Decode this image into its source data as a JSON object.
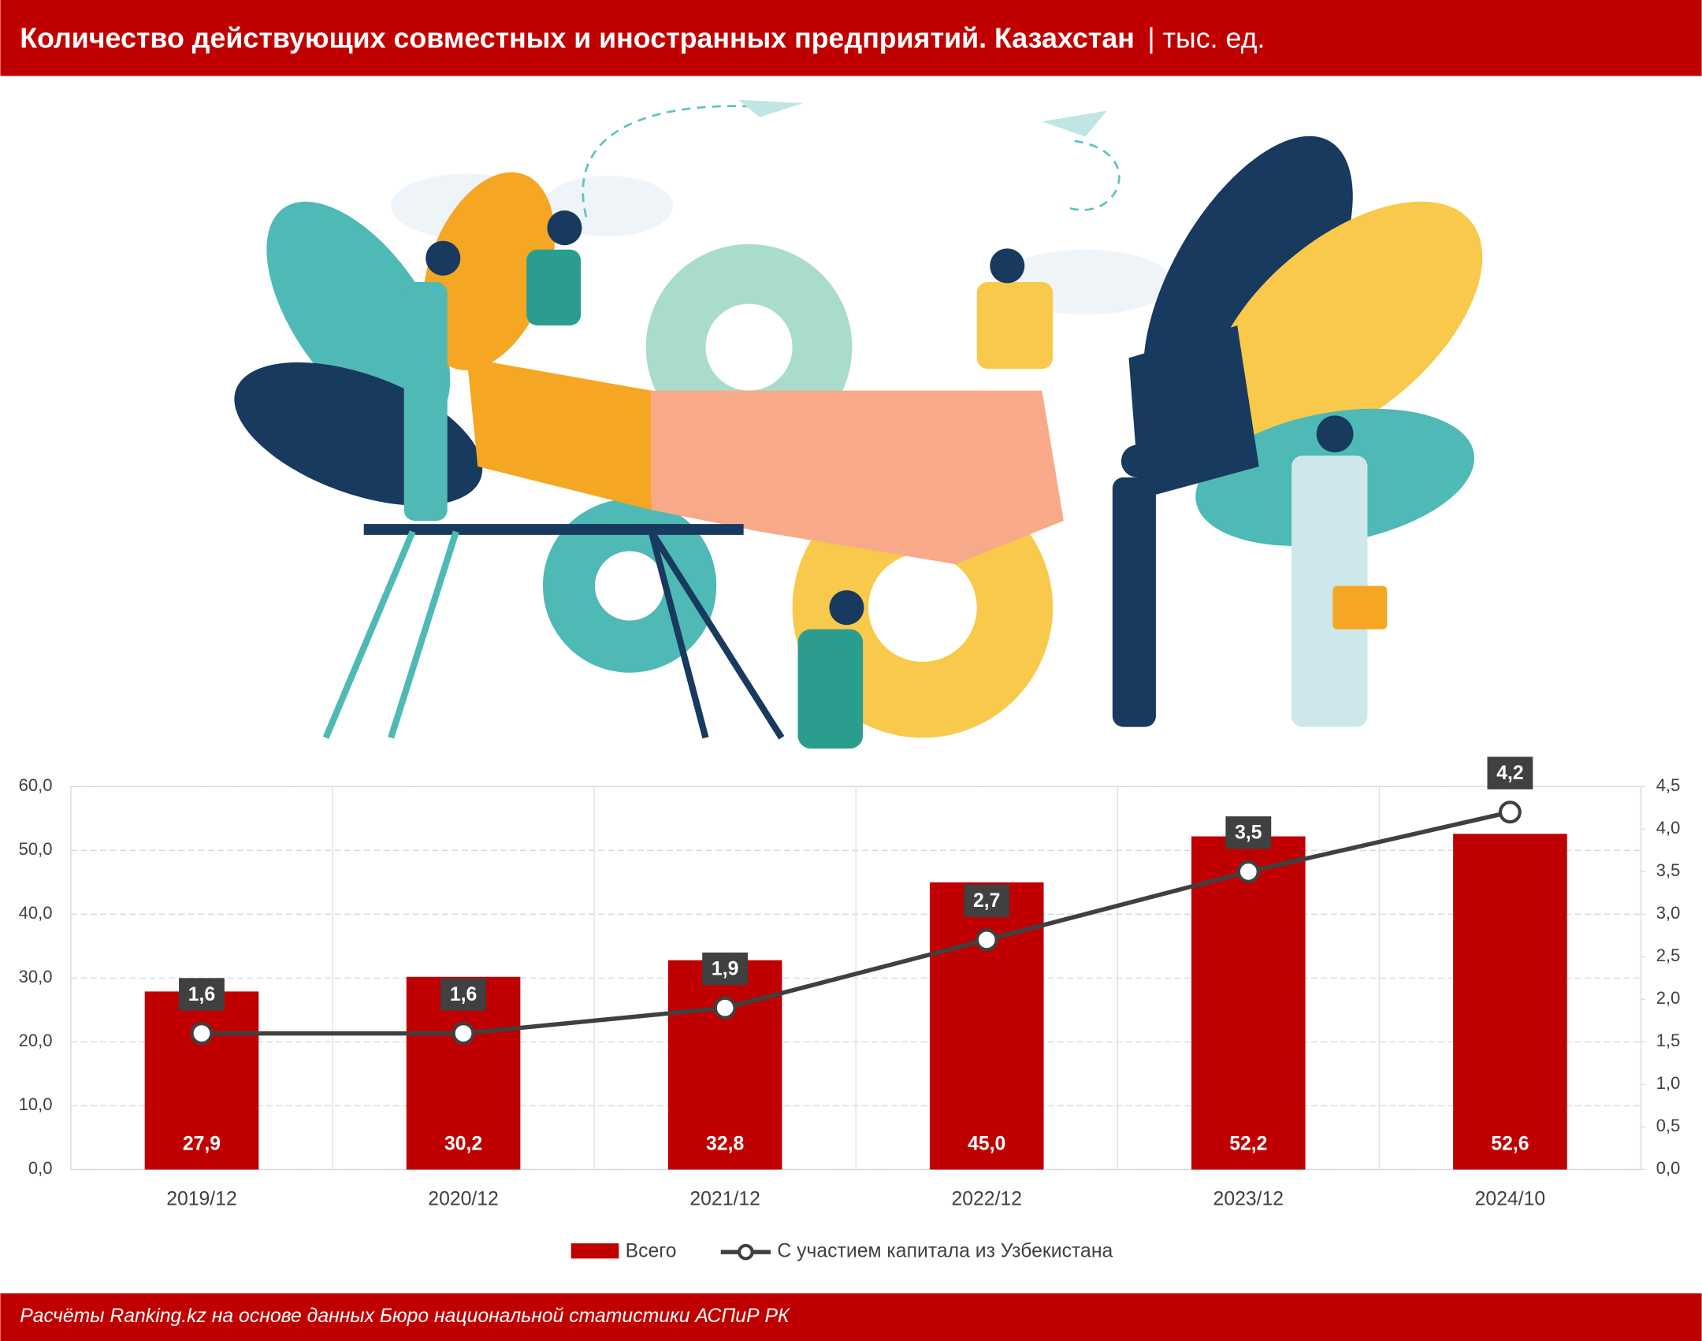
{
  "chart_data": {
    "type": "bar",
    "title": "Количество действующих совместных и иностранных предприятий. Казахстан",
    "subtitle": "| тыс. ед.",
    "source": "Расчёты Ranking.kz на основе данных Бюро национальной статистики АСПиР РК",
    "categories": [
      "2019/12",
      "2020/12",
      "2021/12",
      "2022/12",
      "2023/12",
      "2024/10"
    ],
    "series": [
      {
        "name": "Всего",
        "type": "bar",
        "color": "#c00000",
        "values": [
          27.9,
          30.2,
          32.8,
          45.0,
          52.2,
          52.6
        ],
        "value_labels": [
          "27,9",
          "30,2",
          "32,8",
          "45,0",
          "52,2",
          "52,6"
        ]
      },
      {
        "name": "С участием капитала из Узбекистана",
        "type": "line",
        "axis": "y2",
        "color": "#404040",
        "values": [
          1.6,
          1.6,
          1.9,
          2.7,
          3.5,
          4.2
        ],
        "value_labels": [
          "1,6",
          "1,6",
          "1,9",
          "2,7",
          "3,5",
          "4,2"
        ]
      }
    ],
    "ylim": [
      0,
      60
    ],
    "yticks": [
      {
        "value": 0,
        "label": "0,0"
      },
      {
        "value": 10,
        "label": "10,0"
      },
      {
        "value": 20,
        "label": "20,0"
      },
      {
        "value": 30,
        "label": "30,0"
      },
      {
        "value": 40,
        "label": "40,0"
      },
      {
        "value": 50,
        "label": "50,0"
      },
      {
        "value": 60,
        "label": "60,0"
      }
    ],
    "y2lim": [
      0,
      4.5
    ],
    "y2ticks": [
      {
        "value": 0,
        "label": "0,0"
      },
      {
        "value": 0.5,
        "label": "0,5"
      },
      {
        "value": 1,
        "label": "1,0"
      },
      {
        "value": 1.5,
        "label": "1,5"
      },
      {
        "value": 2,
        "label": "2,0"
      },
      {
        "value": 2.5,
        "label": "2,5"
      },
      {
        "value": 3,
        "label": "3,0"
      },
      {
        "value": 3.5,
        "label": "3,5"
      },
      {
        "value": 4,
        "label": "4,0"
      },
      {
        "value": 4.5,
        "label": "4,5"
      }
    ],
    "grid": true,
    "legend": "bottom"
  }
}
